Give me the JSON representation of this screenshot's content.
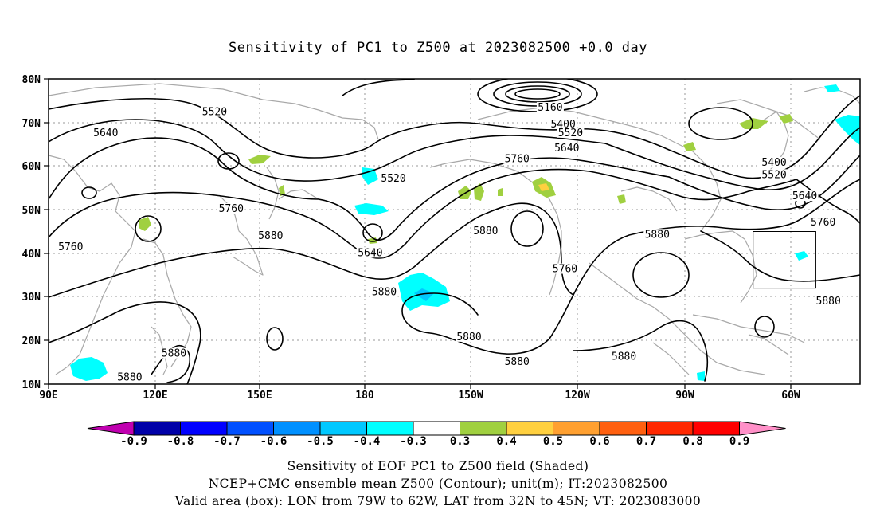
{
  "title": "Sensitivity of PC1 to Z500 at 2023082500 +0.0 day",
  "map": {
    "lat_labels": [
      "80N",
      "70N",
      "60N",
      "50N",
      "40N",
      "30N",
      "20N",
      "10N"
    ],
    "lon_labels": [
      "90E",
      "120E",
      "150E",
      "180",
      "150W",
      "120W",
      "90W",
      "60W"
    ],
    "contour_labels": [
      {
        "text": "5520",
        "lon": 135,
        "lat": 72.5
      },
      {
        "text": "5640",
        "lon": 105.5,
        "lat": 67.7
      },
      {
        "text": "5160",
        "lon": -134,
        "lat": 73.5
      },
      {
        "text": "5400",
        "lon": -130.5,
        "lat": 69.7
      },
      {
        "text": "5520",
        "lon": -128.5,
        "lat": 67.7
      },
      {
        "text": "5640",
        "lon": -129.5,
        "lat": 64.2
      },
      {
        "text": "5760",
        "lon": -143,
        "lat": 61.7
      },
      {
        "text": "5520",
        "lon": -176.5,
        "lat": 57.2
      },
      {
        "text": "5400",
        "lon": -73.3,
        "lat": 60.9
      },
      {
        "text": "5520",
        "lon": -73.3,
        "lat": 58.1
      },
      {
        "text": "5640",
        "lon": -65,
        "lat": 53.2
      },
      {
        "text": "5760",
        "lon": -60,
        "lat": 47.2
      },
      {
        "text": "5760",
        "lon": 139.5,
        "lat": 50.3
      },
      {
        "text": "5880",
        "lon": 150.2,
        "lat": 44.1
      },
      {
        "text": "5760",
        "lon": 96,
        "lat": 41.5
      },
      {
        "text": "5640",
        "lon": 177.2,
        "lat": 40.2
      },
      {
        "text": "5880",
        "lon": -151.5,
        "lat": 45.2
      },
      {
        "text": "5760",
        "lon": -130,
        "lat": 36.5
      },
      {
        "text": "5880",
        "lon": -105,
        "lat": 44.4
      },
      {
        "text": "5880",
        "lon": -179,
        "lat": 31.2
      },
      {
        "text": "5880",
        "lon": -58.6,
        "lat": 29.1
      },
      {
        "text": "5880",
        "lon": -156,
        "lat": 20.9
      },
      {
        "text": "5880",
        "lon": -114,
        "lat": 16.4
      },
      {
        "text": "5880",
        "lon": -143,
        "lat": 15.2
      },
      {
        "text": "5880",
        "lon": 124,
        "lat": 17.1
      },
      {
        "text": "5880",
        "lon": 112,
        "lat": 11.6
      }
    ]
  },
  "colorbar": {
    "labels": [
      "-0.9",
      "-0.8",
      "-0.7",
      "-0.6",
      "-0.5",
      "-0.4",
      "-0.3",
      "0.3",
      "0.4",
      "0.5",
      "0.6",
      "0.7",
      "0.8",
      "0.9"
    ],
    "colors": [
      "#c000b0",
      "#0000a8",
      "#0000ff",
      "#0050ff",
      "#0090ff",
      "#00c8ff",
      "#00ffff",
      "#ffffff",
      "#a0d040",
      "#ffd040",
      "#ffa030",
      "#ff6010",
      "#ff2800",
      "#ff0000",
      "#ff90c8"
    ]
  },
  "captions": {
    "line1": "Sensitivity of EOF PC1 to Z500 field (Shaded)",
    "line2": "NCEP+CMC ensemble mean Z500 (Contour); unit(m); IT:2023082500",
    "line3": "Valid area (box): LON from 79W to 62W, LAT from 32N to 45N; VT: 2023083000"
  },
  "valid_box": {
    "lon_west": -79,
    "lon_east": -62,
    "lat_south": 32,
    "lat_north": 45
  }
}
